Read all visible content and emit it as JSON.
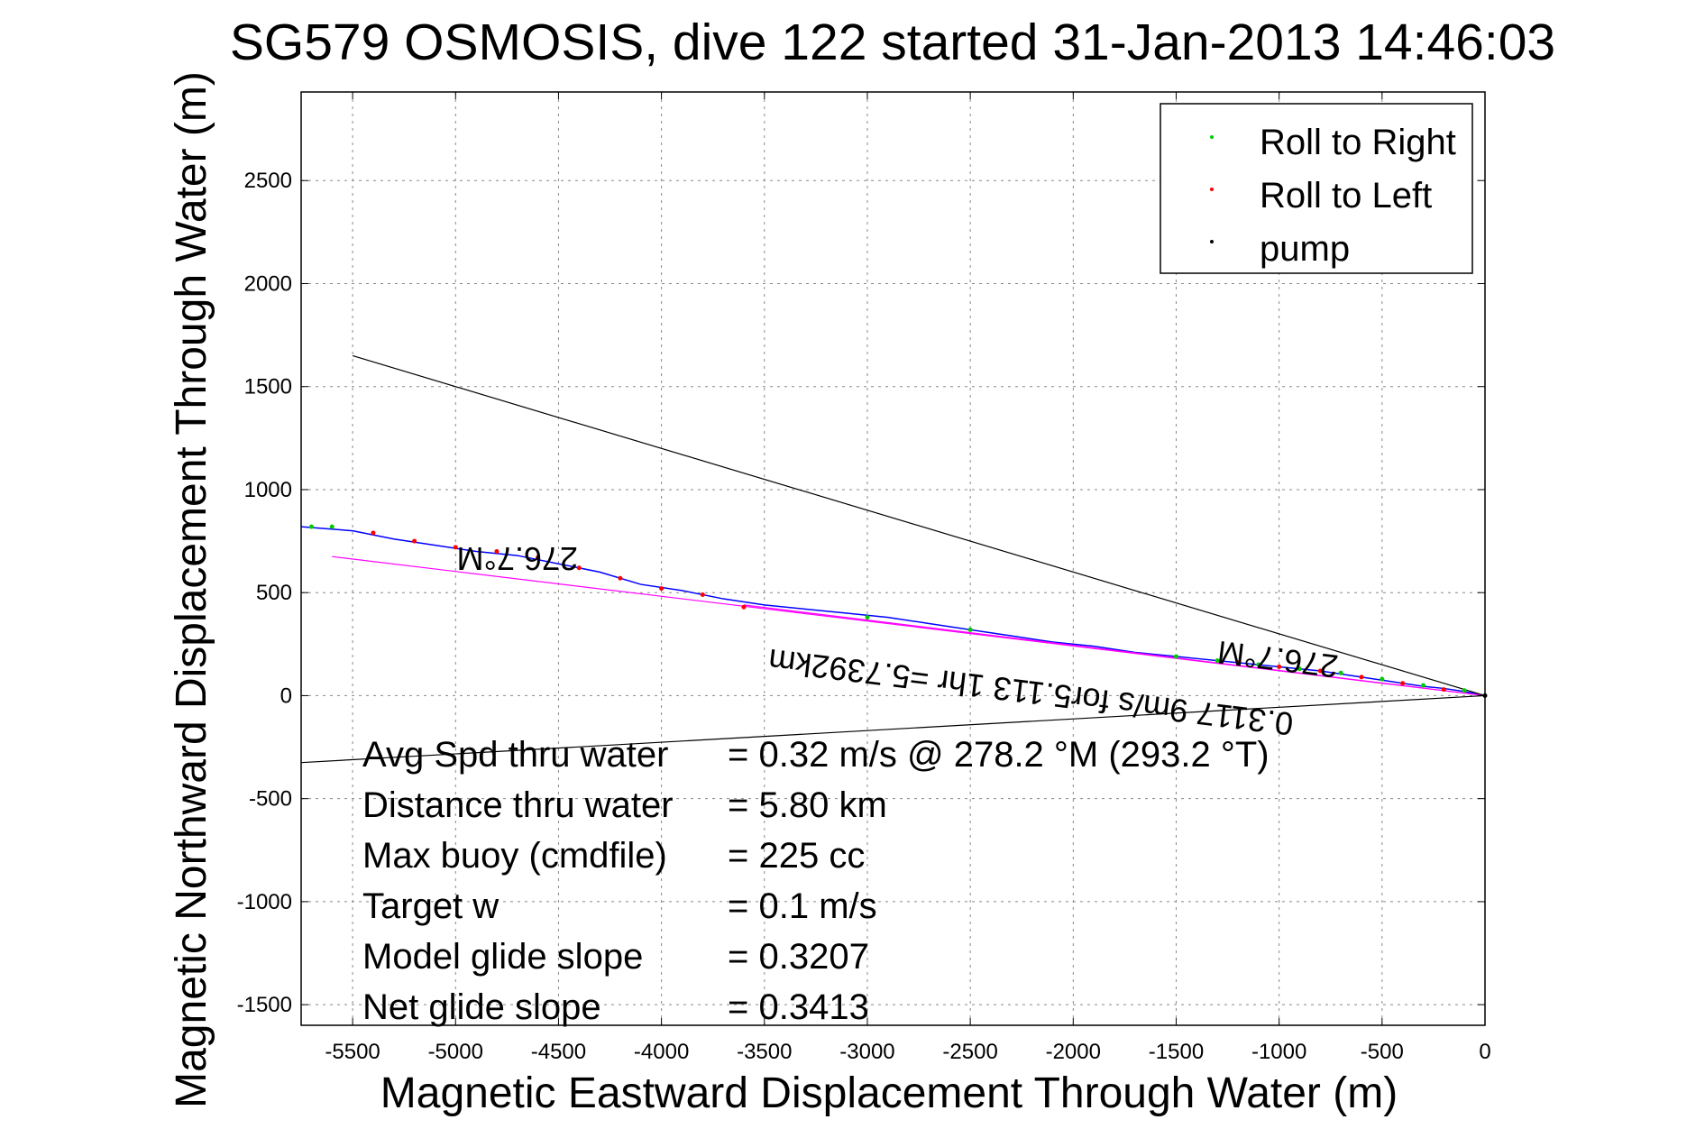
{
  "chart_data": {
    "type": "line",
    "title": "SG579 OSMOSIS, dive 122 started 31-Jan-2013 14:46:03",
    "xlabel": "Magnetic Eastward Displacement Through Water (m)",
    "ylabel": "Magnetic Northward Displacement Through Water (m)",
    "xlim": [
      -5750,
      0
    ],
    "ylim": [
      -1600,
      2930
    ],
    "xticks": [
      -5500,
      -5000,
      -4500,
      -4000,
      -3500,
      -3000,
      -2500,
      -2000,
      -1500,
      -1000,
      -500,
      0
    ],
    "yticks": [
      -1500,
      -1000,
      -500,
      0,
      500,
      1000,
      1500,
      2000,
      2500
    ],
    "grid": true,
    "legend": {
      "position": "top-right",
      "entries": [
        {
          "label": "Roll to Right",
          "color": "#00cc00"
        },
        {
          "label": "Roll to Left",
          "color": "#ff0000"
        },
        {
          "label": "pump",
          "color": "#000000"
        }
      ]
    },
    "series": [
      {
        "kind": "track",
        "color": "#0000ff",
        "x": [
          0,
          -100,
          -200,
          -300,
          -400,
          -500,
          -600,
          -700,
          -800,
          -900,
          -1000,
          -1100,
          -1200,
          -1300,
          -1400,
          -1500,
          -1700,
          -1900,
          -2100,
          -2300,
          -2500,
          -2700,
          -2900,
          -3100,
          -3300,
          -3500,
          -3700,
          -3900,
          -4100,
          -4300,
          -4500,
          -4700,
          -4900,
          -5100,
          -5300,
          -5500,
          -5750
        ],
        "y": [
          0,
          20,
          35,
          45,
          60,
          75,
          90,
          105,
          120,
          130,
          140,
          150,
          160,
          170,
          180,
          190,
          210,
          240,
          260,
          290,
          320,
          350,
          380,
          400,
          420,
          440,
          470,
          510,
          540,
          600,
          640,
          680,
          700,
          730,
          760,
          800,
          820
        ]
      },
      {
        "kind": "heading-line",
        "color": "#ff00ff",
        "x": [
          0,
          -5600
        ],
        "y": [
          0,
          675
        ]
      },
      {
        "kind": "heading-line",
        "color": "#ff00ff",
        "x": [
          0,
          -3600
        ],
        "y": [
          0,
          440
        ]
      },
      {
        "kind": "envelope",
        "color": "#000000",
        "x": [
          0,
          -5500
        ],
        "y": [
          0,
          1650
        ]
      },
      {
        "kind": "envelope",
        "color": "#000000",
        "x": [
          0,
          -5750
        ],
        "y": [
          0,
          -325
        ]
      }
    ],
    "markers": {
      "roll_right_x": [
        -100,
        -300,
        -500,
        -700,
        -900,
        -1100,
        -1300,
        -1500,
        -2500,
        -3000,
        -5600,
        -5700
      ],
      "roll_right_y": [
        25,
        50,
        80,
        110,
        130,
        150,
        170,
        190,
        320,
        380,
        820,
        820
      ],
      "roll_left_x": [
        -200,
        -400,
        -600,
        -800,
        -1000,
        -1200,
        -3600,
        -3800,
        -4000,
        -4200,
        -4400,
        -4600,
        -4800,
        -5000,
        -5200,
        -5400
      ],
      "roll_left_y": [
        30,
        60,
        90,
        120,
        140,
        160,
        430,
        490,
        520,
        570,
        620,
        670,
        700,
        720,
        750,
        790
      ],
      "pump_x": [
        0
      ],
      "pump_y": [
        0
      ]
    },
    "annotations": [
      {
        "text": "276.7°M",
        "x": -4700,
        "y": 720,
        "rotate": 180
      },
      {
        "text": "276.7°M",
        "x": -1000,
        "y": 230,
        "rotate": 187
      },
      {
        "text": "0.3117 9m/s for5.113 1hr =5.7392km",
        "x": -2200,
        "y": 70,
        "rotate": 187
      }
    ],
    "stats": [
      {
        "label": "Avg Spd thru water",
        "value": "=  0.32 m/s @ 278.2 °M (293.2 °T)"
      },
      {
        "label": "Distance thru water",
        "value": "=  5.80 km"
      },
      {
        "label": "Max buoy (cmdfile)",
        "value": "= 225 cc"
      },
      {
        "label": "Target w",
        "value": "= 0.1 m/s"
      },
      {
        "label": "Model glide slope",
        "value": "= 0.3207"
      },
      {
        "label": "Net glide slope",
        "value": "= 0.3413"
      }
    ]
  }
}
